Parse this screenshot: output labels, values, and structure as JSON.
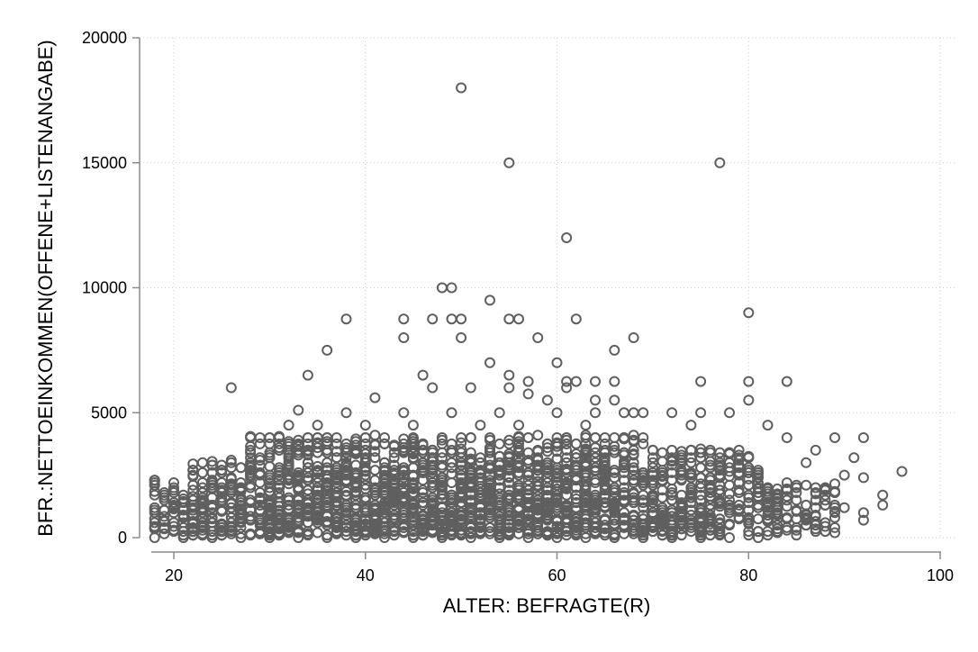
{
  "chart_data": {
    "type": "scatter",
    "title": "",
    "xlabel": "ALTER: BEFRAGTE(R)",
    "ylabel": "BFR.:NETTOEINKOMMEN(OFFENE+LISTENANGABE)",
    "xlim": [
      18,
      100
    ],
    "ylim": [
      0,
      20000
    ],
    "xticks": [
      20,
      40,
      60,
      80,
      100
    ],
    "yticks": [
      0,
      5000,
      10000,
      15000,
      20000
    ],
    "grid": true,
    "marker": "hollow-circle",
    "marker_color": "#5f5f5f",
    "grid_color": "#d0d0d0",
    "axis_color": "#8c8c8c",
    "series": [
      {
        "points": [
          [
            50,
            18000
          ],
          [
            55,
            15000
          ],
          [
            77,
            15000
          ],
          [
            61,
            12000
          ],
          [
            48,
            10000
          ],
          [
            49,
            10000
          ],
          [
            53,
            9500
          ],
          [
            80,
            9000
          ],
          [
            38,
            8750
          ],
          [
            44,
            8750
          ],
          [
            47,
            8750
          ],
          [
            49,
            8750
          ],
          [
            50,
            8750
          ],
          [
            55,
            8750
          ],
          [
            56,
            8750
          ],
          [
            62,
            8750
          ],
          [
            44,
            8000
          ],
          [
            50,
            8000
          ],
          [
            58,
            8000
          ],
          [
            68,
            8000
          ],
          [
            36,
            7500
          ],
          [
            66,
            7500
          ],
          [
            53,
            7000
          ],
          [
            60,
            7000
          ],
          [
            34,
            6500
          ],
          [
            46,
            6500
          ],
          [
            55,
            6500
          ],
          [
            57,
            6250
          ],
          [
            61,
            6250
          ],
          [
            62,
            6250
          ],
          [
            64,
            6250
          ],
          [
            66,
            6250
          ],
          [
            75,
            6250
          ],
          [
            80,
            6250
          ],
          [
            84,
            6250
          ],
          [
            26,
            6000
          ],
          [
            47,
            6000
          ],
          [
            51,
            6000
          ],
          [
            55,
            6000
          ],
          [
            61,
            6000
          ],
          [
            41,
            5600
          ],
          [
            57,
            5750
          ],
          [
            59,
            5500
          ],
          [
            64,
            5500
          ],
          [
            66,
            5500
          ],
          [
            80,
            5500
          ],
          [
            33,
            5100
          ],
          [
            38,
            5000
          ],
          [
            44,
            5000
          ],
          [
            49,
            5000
          ],
          [
            54,
            5000
          ],
          [
            60,
            5000
          ],
          [
            64,
            5000
          ],
          [
            67,
            5000
          ],
          [
            68,
            5000
          ],
          [
            69,
            5000
          ],
          [
            72,
            5000
          ],
          [
            75,
            5000
          ],
          [
            78,
            5000
          ],
          [
            32,
            4500
          ],
          [
            35,
            4500
          ],
          [
            40,
            4500
          ],
          [
            45,
            4500
          ],
          [
            52,
            4500
          ],
          [
            56,
            4500
          ],
          [
            63,
            4500
          ],
          [
            74,
            4500
          ],
          [
            82,
            4500
          ],
          [
            20,
            2200
          ],
          [
            18,
            2200
          ],
          [
            18,
            1700
          ],
          [
            84,
            4000
          ],
          [
            89,
            4000
          ],
          [
            92,
            4000
          ],
          [
            91,
            3200
          ],
          [
            96,
            2650
          ],
          [
            94,
            1700
          ],
          [
            94,
            1300
          ],
          [
            92,
            1000
          ],
          [
            92,
            700
          ],
          [
            86,
            3000
          ],
          [
            87,
            3500
          ],
          [
            90,
            2500
          ],
          [
            92,
            2400
          ],
          [
            88,
            1500
          ],
          [
            87,
            900
          ],
          [
            86,
            500
          ],
          [
            85,
            300
          ],
          [
            88,
            2000
          ],
          [
            89,
            1800
          ],
          [
            90,
            1200
          ]
        ]
      }
    ]
  }
}
